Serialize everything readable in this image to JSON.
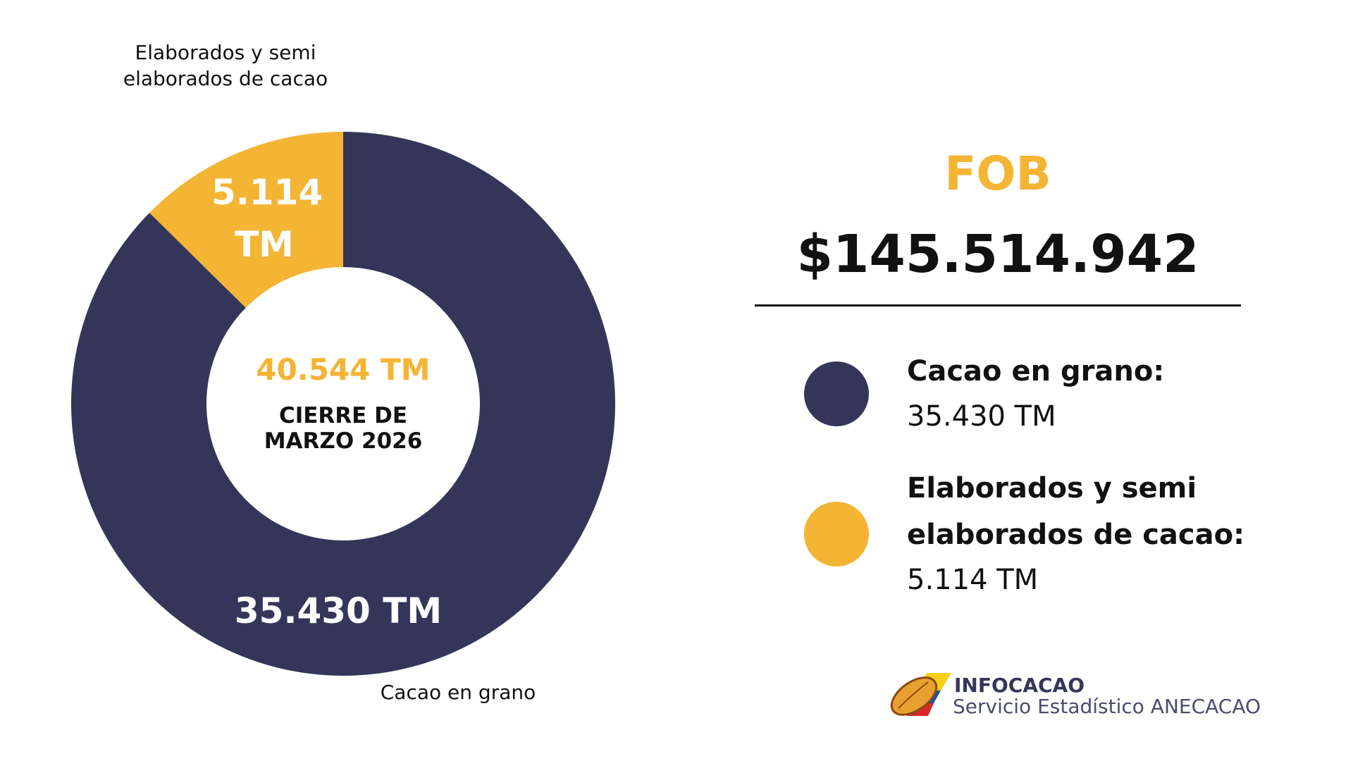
{
  "chart_data": {
    "type": "donut",
    "categories": [
      "Cacao en grano",
      "Elaborados y semi elaborados de cacao"
    ],
    "values": [
      35430,
      5114
    ],
    "value_labels": [
      "35.430 TM",
      "5.114 TM"
    ],
    "colors": [
      "#343659",
      "#f4b434"
    ],
    "center_value": "40.544 TM",
    "center_text": "CIERRE DE MARZO 2026"
  },
  "summary": {
    "title": "FOB",
    "amount": "$145.514.942",
    "legend": [
      {
        "label": "Cacao en grano:",
        "value": "35.430 TM"
      },
      {
        "label": "Elaborados y semi elaborados de cacao:",
        "value": "5.114 TM"
      }
    ]
  },
  "logo": {
    "name": "INFOCACAO",
    "subtitle": "Servicio Estadístico ANECACAO"
  }
}
